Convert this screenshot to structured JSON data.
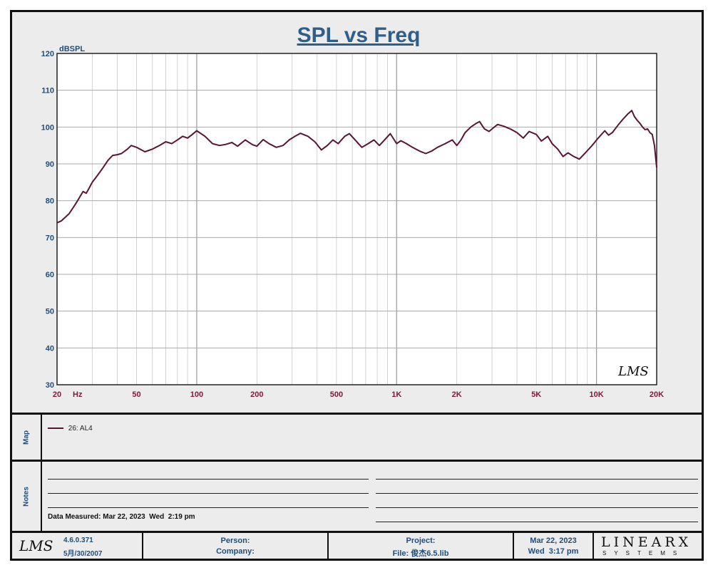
{
  "chart_data": {
    "type": "line",
    "title": "SPL vs Freq",
    "ylabel": "dBSPL",
    "xlabel": "Hz",
    "xscale": "log",
    "xlim": [
      20,
      20000
    ],
    "ylim": [
      30,
      120
    ],
    "grid": true,
    "y_ticks": [
      30,
      40,
      50,
      60,
      70,
      80,
      90,
      100,
      110,
      120
    ],
    "x_ticks": [
      {
        "value": 20,
        "label": "20"
      },
      {
        "value": 50,
        "label": "50"
      },
      {
        "value": 100,
        "label": "100"
      },
      {
        "value": 200,
        "label": "200"
      },
      {
        "value": 500,
        "label": "500"
      },
      {
        "value": 1000,
        "label": "1K"
      },
      {
        "value": 2000,
        "label": "2K"
      },
      {
        "value": 5000,
        "label": "5K"
      },
      {
        "value": 10000,
        "label": "10K"
      },
      {
        "value": 20000,
        "label": "20K"
      }
    ],
    "watermark": "LMS",
    "series": [
      {
        "name": "26: AL4",
        "color": "#5a1535",
        "points": [
          [
            20,
            74.0
          ],
          [
            21,
            74.5
          ],
          [
            22,
            75.5
          ],
          [
            23,
            76.5
          ],
          [
            24,
            78.0
          ],
          [
            25,
            79.5
          ],
          [
            26,
            81.0
          ],
          [
            27,
            82.5
          ],
          [
            28,
            82.0
          ],
          [
            29,
            83.5
          ],
          [
            30,
            85.0
          ],
          [
            32,
            87.0
          ],
          [
            34,
            89.0
          ],
          [
            36,
            91.0
          ],
          [
            38,
            92.3
          ],
          [
            40,
            92.5
          ],
          [
            42,
            92.8
          ],
          [
            45,
            94.0
          ],
          [
            47,
            95.0
          ],
          [
            50,
            94.5
          ],
          [
            55,
            93.3
          ],
          [
            60,
            94.0
          ],
          [
            65,
            95.0
          ],
          [
            70,
            96.0
          ],
          [
            75,
            95.5
          ],
          [
            80,
            96.5
          ],
          [
            85,
            97.5
          ],
          [
            90,
            97.0
          ],
          [
            95,
            98.0
          ],
          [
            100,
            99.0
          ],
          [
            110,
            97.5
          ],
          [
            120,
            95.5
          ],
          [
            130,
            95.0
          ],
          [
            140,
            95.3
          ],
          [
            150,
            95.8
          ],
          [
            160,
            94.8
          ],
          [
            175,
            96.5
          ],
          [
            190,
            95.2
          ],
          [
            200,
            94.8
          ],
          [
            215,
            96.6
          ],
          [
            230,
            95.5
          ],
          [
            250,
            94.5
          ],
          [
            270,
            95.0
          ],
          [
            290,
            96.5
          ],
          [
            310,
            97.5
          ],
          [
            330,
            98.3
          ],
          [
            360,
            97.5
          ],
          [
            390,
            96.0
          ],
          [
            420,
            93.8
          ],
          [
            450,
            95.0
          ],
          [
            480,
            96.5
          ],
          [
            510,
            95.5
          ],
          [
            550,
            97.5
          ],
          [
            580,
            98.2
          ],
          [
            620,
            96.5
          ],
          [
            670,
            94.5
          ],
          [
            720,
            95.5
          ],
          [
            770,
            96.5
          ],
          [
            820,
            95.0
          ],
          [
            870,
            96.5
          ],
          [
            930,
            98.2
          ],
          [
            1000,
            95.5
          ],
          [
            1050,
            96.3
          ],
          [
            1120,
            95.5
          ],
          [
            1200,
            94.5
          ],
          [
            1300,
            93.5
          ],
          [
            1400,
            92.8
          ],
          [
            1500,
            93.5
          ],
          [
            1600,
            94.5
          ],
          [
            1750,
            95.5
          ],
          [
            1900,
            96.5
          ],
          [
            2000,
            95.0
          ],
          [
            2100,
            96.5
          ],
          [
            2200,
            98.5
          ],
          [
            2350,
            100.0
          ],
          [
            2500,
            101.0
          ],
          [
            2600,
            101.5
          ],
          [
            2750,
            99.5
          ],
          [
            2900,
            98.8
          ],
          [
            3050,
            99.8
          ],
          [
            3200,
            100.7
          ],
          [
            3450,
            100.2
          ],
          [
            3700,
            99.5
          ],
          [
            4000,
            98.5
          ],
          [
            4300,
            97.0
          ],
          [
            4600,
            98.8
          ],
          [
            5000,
            98.0
          ],
          [
            5300,
            96.2
          ],
          [
            5700,
            97.5
          ],
          [
            6000,
            95.5
          ],
          [
            6400,
            94.0
          ],
          [
            6800,
            92.0
          ],
          [
            7200,
            93.0
          ],
          [
            7700,
            92.0
          ],
          [
            8200,
            91.3
          ],
          [
            8800,
            93.0
          ],
          [
            9500,
            95.0
          ],
          [
            10200,
            97.0
          ],
          [
            11000,
            99.0
          ],
          [
            11500,
            97.8
          ],
          [
            12000,
            98.5
          ],
          [
            12800,
            100.5
          ],
          [
            13500,
            102.0
          ],
          [
            14300,
            103.5
          ],
          [
            15000,
            104.5
          ],
          [
            15500,
            102.8
          ],
          [
            16000,
            101.8
          ],
          [
            16500,
            101.0
          ],
          [
            17000,
            100.0
          ],
          [
            17500,
            99.3
          ],
          [
            18000,
            99.5
          ],
          [
            18500,
            98.5
          ],
          [
            19000,
            98.0
          ],
          [
            19500,
            95.0
          ],
          [
            20000,
            89.0
          ]
        ]
      }
    ]
  },
  "map": {
    "label": "Map",
    "legend_entry": "26: AL4"
  },
  "notes": {
    "label": "Notes",
    "measured": "Data Measured: Mar 22, 2023  Wed  2:19 pm"
  },
  "footer": {
    "logo": "LMS",
    "version": "4.6.0.371",
    "version_date": "5月/30/2007",
    "person_label": "Person:",
    "company_label": "Company:",
    "project_label": "Project:",
    "file_label": "File: 俊杰6.5.lib",
    "date": "Mar 22, 2023",
    "time": "Wed  3:17 pm",
    "brand_main": "LINEARX",
    "brand_sub": "SYSTEMS"
  },
  "colors": {
    "axis_text": "#1f4e79",
    "x_tick_text": "#7a1a3a",
    "curve": "#5a1535",
    "grid": "#c8c8c8"
  }
}
